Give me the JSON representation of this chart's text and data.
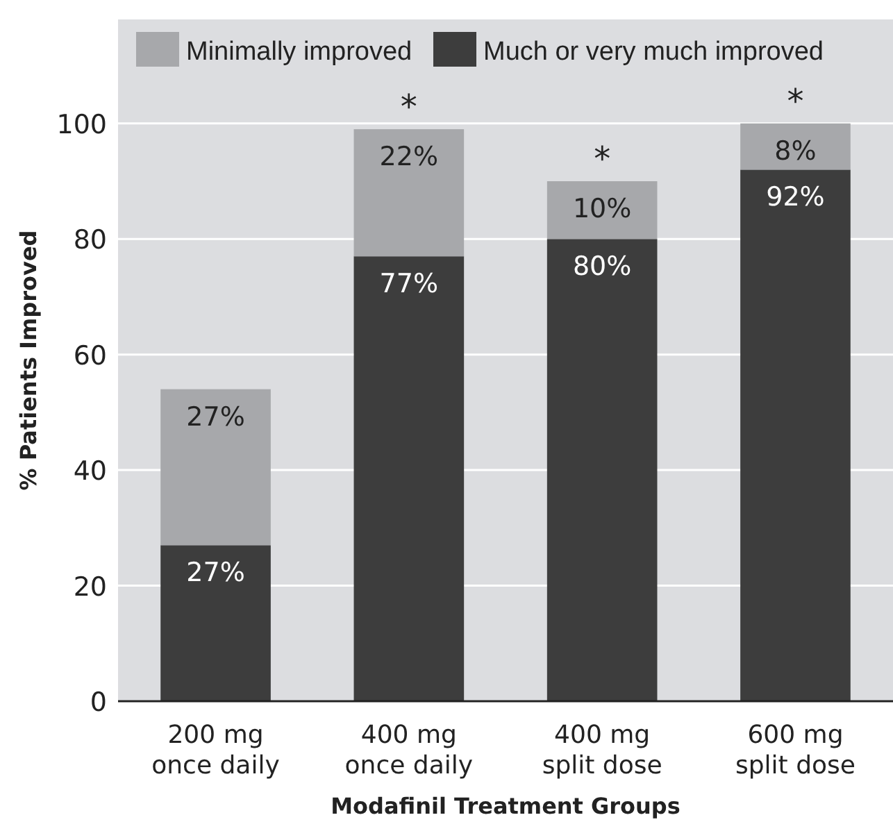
{
  "chart_data": {
    "type": "bar",
    "stacked": true,
    "xlabel": "Modafinil Treatment Groups",
    "ylabel": "% Patients Improved",
    "categories": [
      "200 mg once daily",
      "400 mg once daily",
      "400 mg split dose",
      "600 mg split dose"
    ],
    "series": [
      {
        "name": "Much or very much improved",
        "color": "#3d3d3d",
        "values": [
          27,
          77,
          80,
          92
        ],
        "value_labels": [
          "27%",
          "77%",
          "80%",
          "92%"
        ]
      },
      {
        "name": "Minimally improved",
        "color": "#a7a8ab",
        "values": [
          27,
          22,
          10,
          8
        ],
        "value_labels": [
          "27%",
          "22%",
          "10%",
          "8%"
        ]
      }
    ],
    "ylim": [
      0,
      118
    ],
    "yticks": [
      0,
      20,
      40,
      60,
      80,
      100
    ],
    "grid": "y",
    "legend": "top",
    "annotations": [
      {
        "text": "*",
        "x": "400 mg once daily",
        "y": 99
      },
      {
        "text": "*",
        "x": "400 mg split dose",
        "y": 90
      },
      {
        "text": "*",
        "x": "600 mg split dose",
        "y": 100
      }
    ]
  }
}
